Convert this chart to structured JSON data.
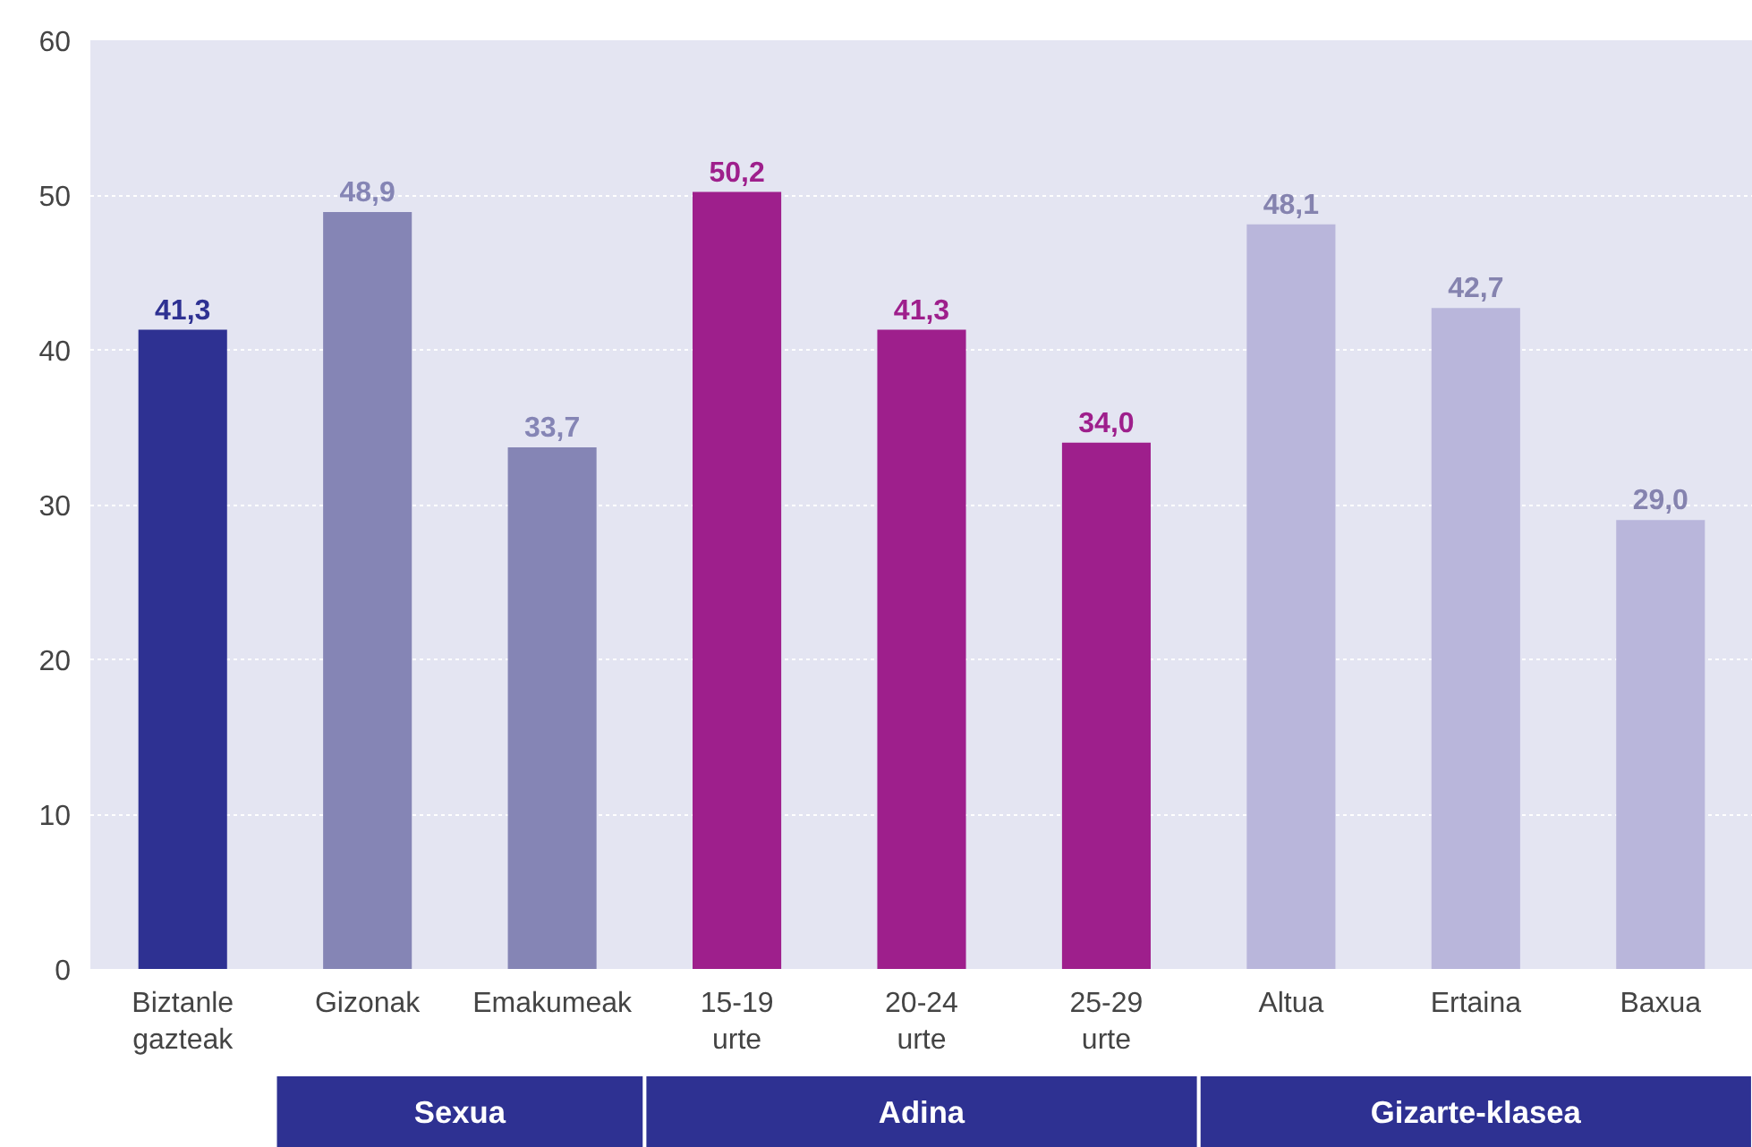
{
  "chart_data": {
    "type": "bar",
    "categories": [
      "Biztanle gazteak",
      "Gizonak",
      "Emakumeak",
      "15-19 urte",
      "20-24 urte",
      "25-29 urte",
      "Altua",
      "Ertaina",
      "Baxua"
    ],
    "values": [
      41.3,
      48.9,
      33.7,
      50.2,
      41.3,
      34.0,
      48.1,
      42.7,
      29.0
    ],
    "colors": [
      "#2e3192",
      "#8585b5",
      "#8585b5",
      "#9e1f8c",
      "#9e1f8c",
      "#9e1f8c",
      "#b9b6db",
      "#b9b6db",
      "#b9b6db"
    ],
    "value_labels": [
      "41,3",
      "48,9",
      "33,7",
      "50,2",
      "41,3",
      "34,0",
      "48,1",
      "42,7",
      "29,0"
    ],
    "ylim": [
      0,
      60
    ],
    "yticks": [
      0,
      10,
      20,
      30,
      40,
      50,
      60
    ],
    "grid": "y",
    "annotations": [
      "Sexua",
      "Adina",
      "Gizarte-klasea"
    ]
  }
}
